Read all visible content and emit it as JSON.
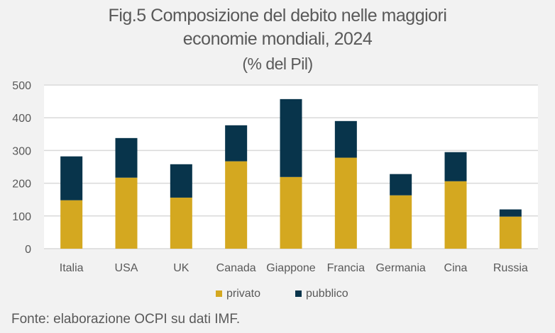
{
  "chart_data": {
    "type": "bar",
    "stacked": true,
    "title": "Fig.5 Composizione del debito nelle maggiori economie mondiali, 2024",
    "title_lines": [
      "Fig.5 Composizione del debito nelle maggiori",
      "economie mondiali, 2024"
    ],
    "subtitle": "(% del Pil)",
    "xlabel": "",
    "ylabel": "",
    "ylim": [
      0,
      500
    ],
    "yticks": [
      0,
      100,
      200,
      300,
      400,
      500
    ],
    "grid": true,
    "legend_position": "bottom",
    "categories": [
      "Italia",
      "USA",
      "UK",
      "Canada",
      "Giappone",
      "Francia",
      "Germania",
      "Cina",
      "Russia"
    ],
    "series": [
      {
        "name": "privato",
        "color": "#D4A820",
        "values": [
          148,
          217,
          156,
          267,
          219,
          278,
          163,
          206,
          98
        ]
      },
      {
        "name": "pubblico",
        "color": "#08344B",
        "values": [
          134,
          121,
          102,
          110,
          238,
          112,
          65,
          89,
          22
        ]
      }
    ],
    "source": "Fonte: elaborazione OCPI su dati IMF."
  }
}
